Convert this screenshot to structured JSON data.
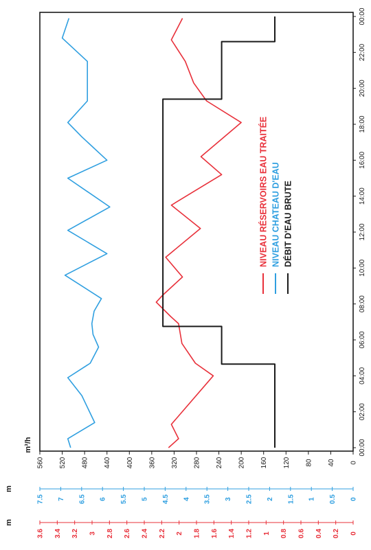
{
  "colors": {
    "reservoirs": "#e8303a",
    "chateau": "#2f9fe0",
    "debit": "#1a1a1a",
    "frame": "#1a1a1a"
  },
  "chart_data": {
    "type": "line",
    "orientation": "rotated-90-ccw",
    "x_label": "",
    "x_tick_labels": [
      "00:00",
      "02:00",
      "04:00",
      "06:00",
      "08:00",
      "10:00",
      "12:00",
      "14:00",
      "16:00",
      "18:00",
      "20:00",
      "22:00",
      "00:00"
    ],
    "xlim": [
      0,
      24
    ],
    "y_axes": [
      {
        "id": "flow",
        "unit": "m³/h",
        "color": "#1a1a1a",
        "ylim": [
          0,
          560
        ],
        "tick_labels": [
          "0",
          "40",
          "80",
          "120",
          "160",
          "200",
          "240",
          "280",
          "320",
          "360",
          "400",
          "440",
          "480",
          "520",
          "560"
        ]
      },
      {
        "id": "chateau",
        "unit": "m",
        "color": "#2f9fe0",
        "ylim": [
          0,
          7.5
        ],
        "tick_labels": [
          "0",
          "0.5",
          "1",
          "1.5",
          "2",
          "2.5",
          "3",
          "3.5",
          "4",
          "4.5",
          "5",
          "5.5",
          "6",
          "6.5",
          "7",
          "7.5"
        ]
      },
      {
        "id": "reservoirs",
        "unit": "m",
        "color": "#e8303a",
        "ylim": [
          0,
          3.6
        ],
        "tick_labels": [
          "0",
          "0.2",
          "0.4",
          "0.6",
          "0.8",
          "1",
          "1.2",
          "1.4",
          "1.6",
          "1.8",
          "2",
          "2.2",
          "2.4",
          "2.6",
          "2.8",
          "3",
          "3.2",
          "3.4",
          "3.6"
        ]
      }
    ],
    "series": [
      {
        "name": "NIVEAU RÉSERVOIRS EAU TRAITÉE",
        "axis": "flow",
        "color": "#e8303a",
        "x": [
          0,
          0.5,
          1.3,
          4.0,
          4.7,
          5.8,
          6.9,
          7.3,
          8.1,
          8.5,
          9.5,
          10.6,
          12.2,
          13.5,
          14.2,
          15.2,
          16.2,
          18.1,
          19.3,
          20.3,
          21.5,
          22.7,
          23.9
        ],
        "values": [
          330,
          312,
          325,
          250,
          282,
          306,
          312,
          326,
          352,
          340,
          305,
          335,
          273,
          325,
          288,
          235,
          272,
          200,
          262,
          285,
          300,
          325,
          305
        ]
      },
      {
        "name": "NIVEAU CHATEAU D'EAU",
        "axis": "flow",
        "color": "#2f9fe0",
        "x": [
          0,
          0.5,
          1.4,
          2.9,
          3.9,
          4.7,
          5.6,
          6.3,
          6.9,
          7.6,
          8.3,
          9.6,
          10.8,
          12.1,
          13.4,
          15.0,
          16.0,
          17.3,
          18.1,
          19.3,
          20.8,
          21.5,
          22.8,
          23.9
        ],
        "values": [
          505,
          510,
          462,
          485,
          510,
          470,
          455,
          465,
          467,
          463,
          450,
          515,
          440,
          510,
          435,
          510,
          440,
          485,
          510,
          475,
          475,
          475,
          520,
          508
        ]
      },
      {
        "name": "DÉBIT D'EAU BRUTE",
        "axis": "flow",
        "color": "#1a1a1a",
        "x": [
          0,
          4.65,
          4.65,
          6.75,
          6.75,
          19.4,
          19.4,
          22.6,
          22.6,
          24
        ],
        "values": [
          140,
          140,
          235,
          235,
          340,
          340,
          235,
          235,
          140,
          140
        ]
      }
    ],
    "legend_position": "center-right"
  }
}
